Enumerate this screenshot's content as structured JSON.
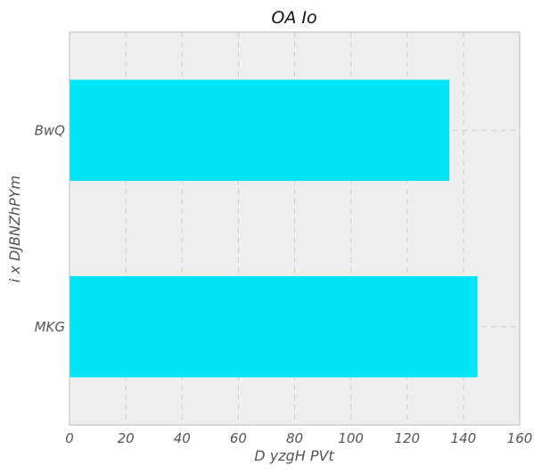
{
  "chart_data": {
    "type": "bar",
    "orientation": "horizontal",
    "title": "OA Io",
    "xlabel": "D yzgH  PVt",
    "ylabel": "i x DJBNZhPYm",
    "categories": [
      "BwQ",
      "MKG"
    ],
    "series": [
      {
        "values": [
          135,
          145
        ]
      }
    ],
    "xlim": [
      0,
      160
    ],
    "xticks": [
      0,
      20,
      40,
      60,
      80,
      100,
      120,
      140,
      160
    ],
    "grid": true,
    "legend": "none",
    "colors": {
      "bar": "#00e5f7",
      "plot_background": "#eeeeee",
      "grid": "#cfcfcf",
      "spine": "#bbbbbb"
    }
  }
}
